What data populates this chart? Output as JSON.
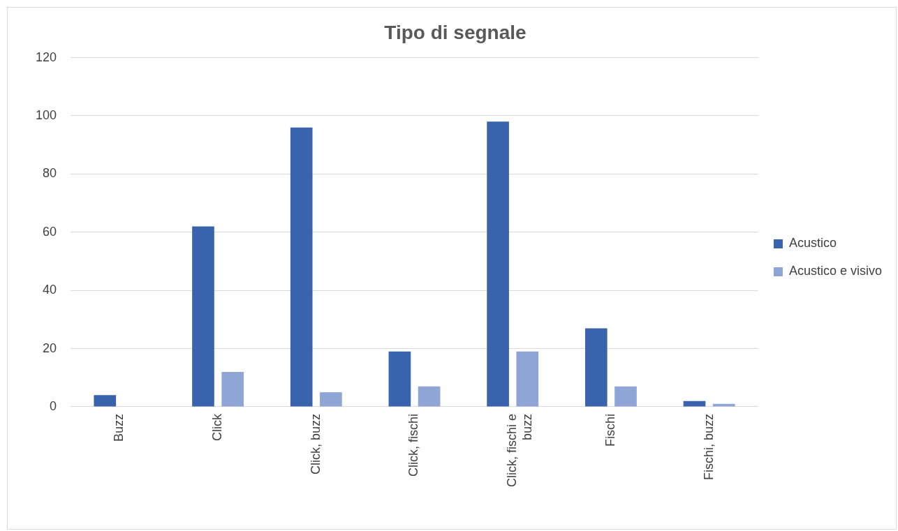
{
  "chart_data": {
    "type": "bar",
    "title": "Tipo di segnale",
    "categories": [
      "Buzz",
      "Click",
      "Click, buzz",
      "Click, fischi",
      "Click, fischi e buzz",
      "Fischi",
      "Fischi, buzz"
    ],
    "series": [
      {
        "name": "Acustico",
        "color": "#3a63ad",
        "values": [
          4,
          62,
          96,
          19,
          98,
          27,
          2
        ]
      },
      {
        "name": "Acustico e visivo",
        "color": "#8fa5d6",
        "values": [
          0,
          12,
          5,
          7,
          19,
          7,
          1
        ]
      }
    ],
    "ylim": [
      0,
      120
    ],
    "yticks": [
      0,
      20,
      40,
      60,
      80,
      100,
      120
    ],
    "grid": "y",
    "legend": "right"
  }
}
